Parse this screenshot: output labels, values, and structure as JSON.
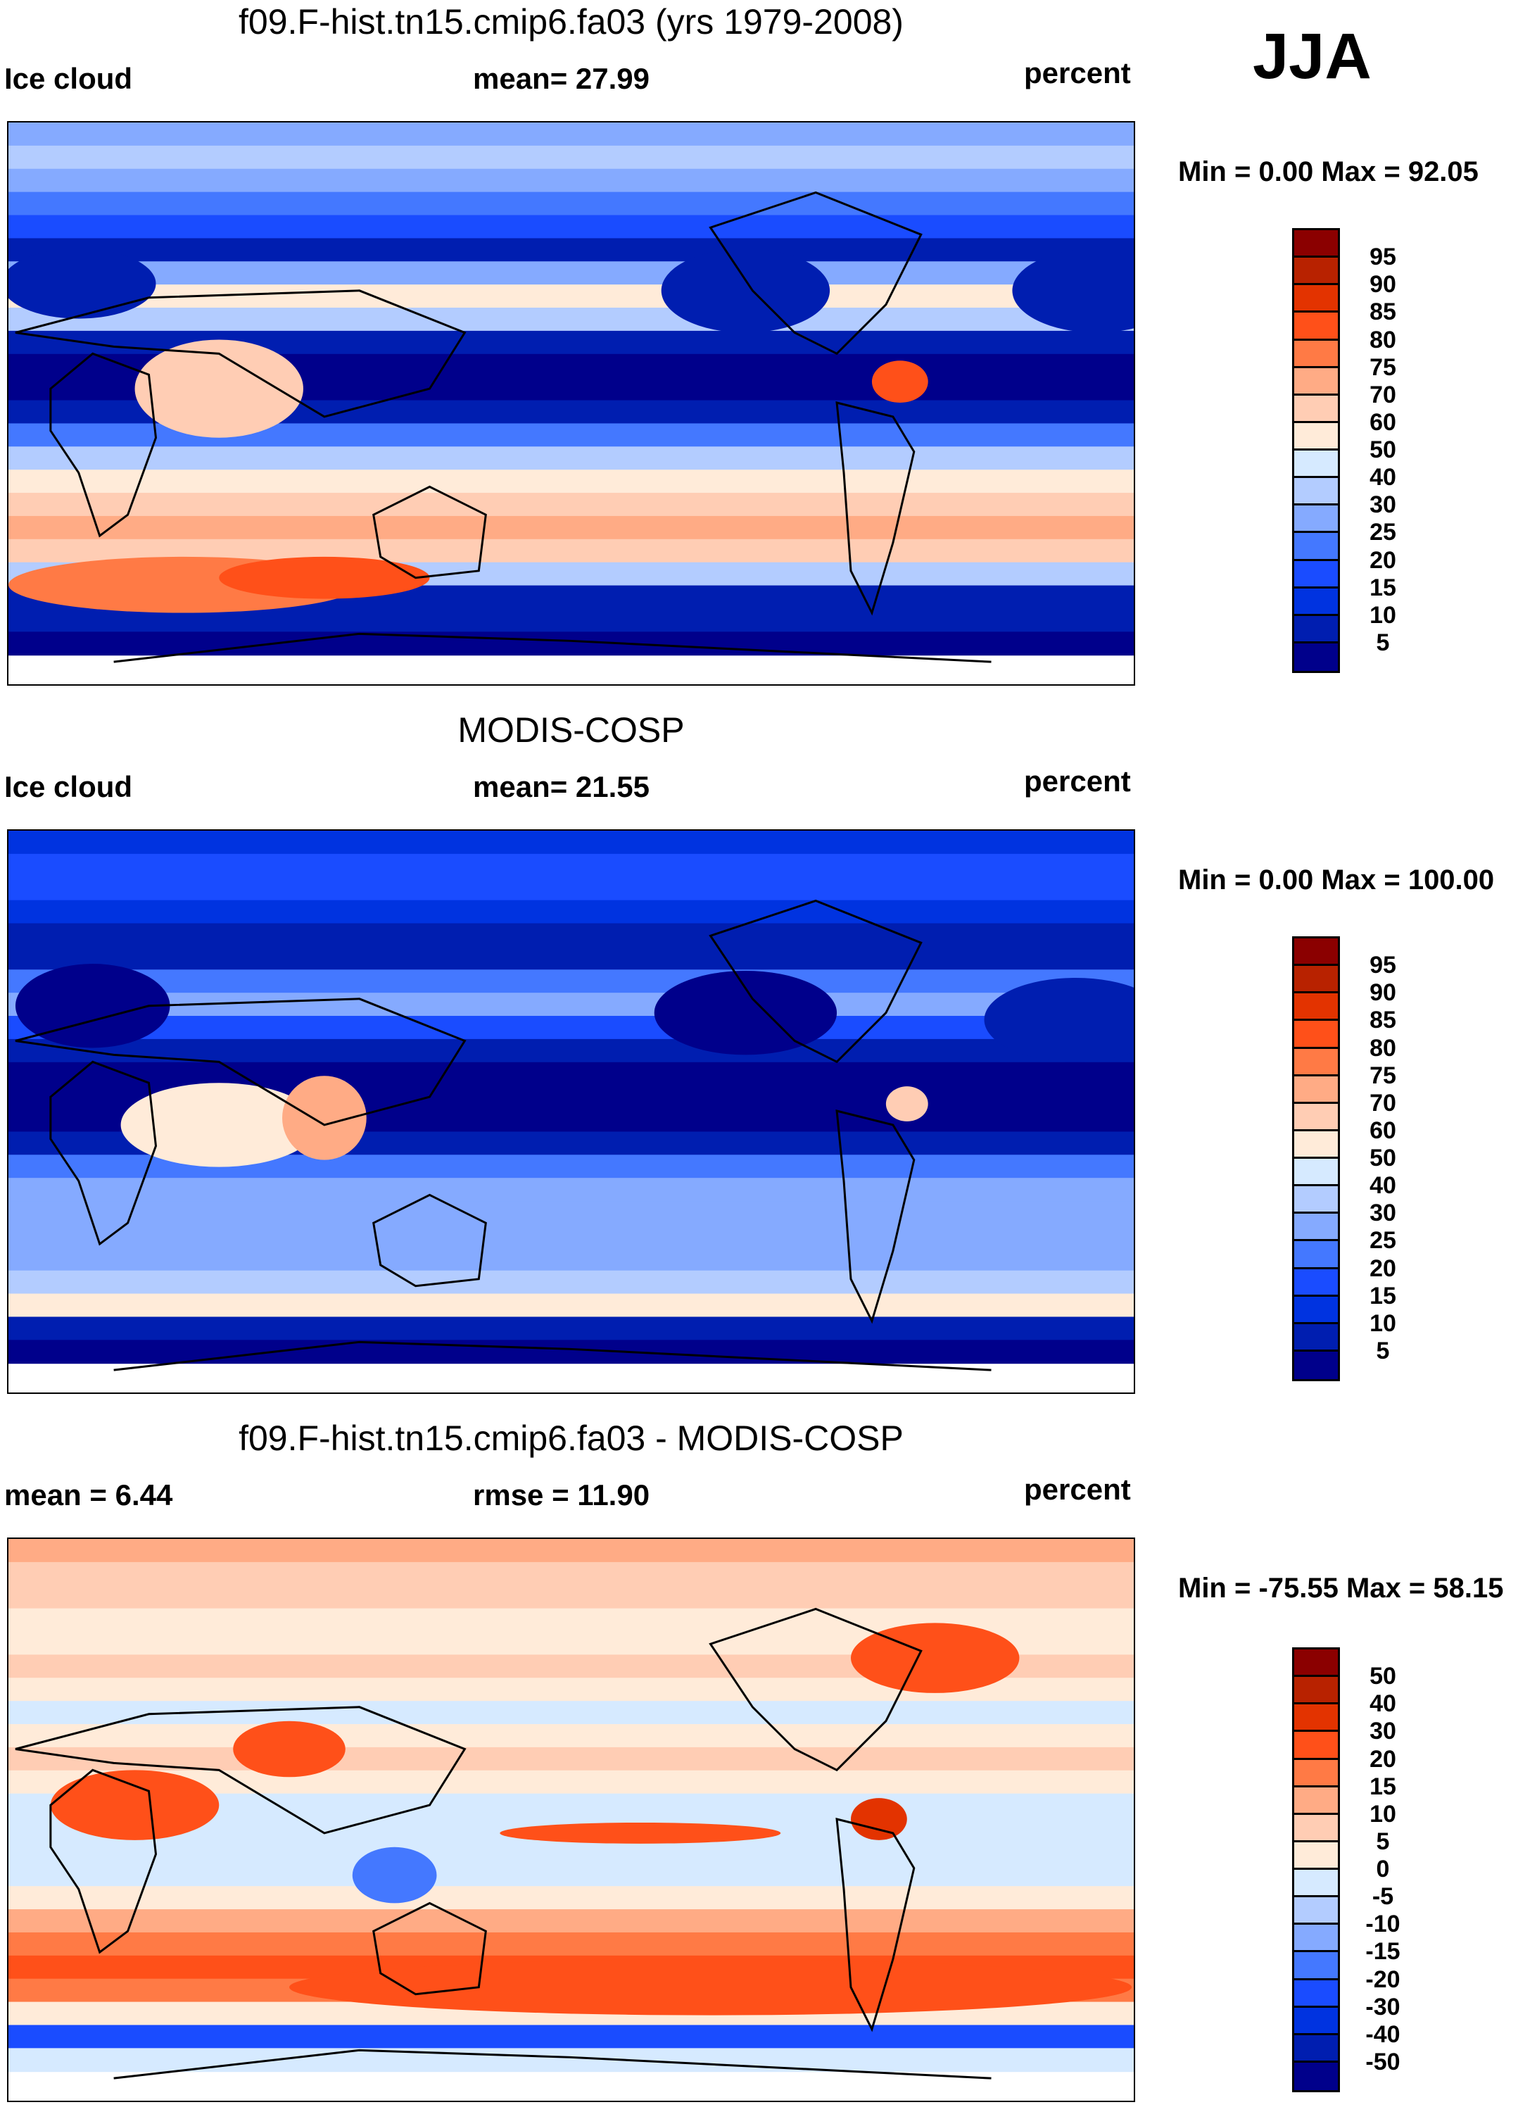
{
  "header": {
    "season": "JJA"
  },
  "colors": [
    "#8b0000",
    "#b82200",
    "#e33300",
    "#ff5019",
    "#ff7a45",
    "#ffab85",
    "#ffcdb4",
    "#ffebd9",
    "#d6eaff",
    "#b3ccff",
    "#85aaff",
    "#4478ff",
    "#1a4cff",
    "#0033e0",
    "#001eb0",
    "#00008b"
  ],
  "chart_data": [
    {
      "type": "heatmap",
      "title": "f09.F-hist.tn15.cmip6.fa03 (yrs 1979-2008)",
      "left_label": "Ice cloud",
      "center_label": "mean=  27.99",
      "right_label": "percent",
      "minmax": "Min =   0.00 Max =  92.05",
      "levels": [
        "95",
        "90",
        "85",
        "80",
        "75",
        "70",
        "60",
        "50",
        "40",
        "30",
        "25",
        "20",
        "15",
        "10",
        "5"
      ],
      "mean": 27.99,
      "min": 0.0,
      "max": 92.05
    },
    {
      "type": "heatmap",
      "title": "MODIS-COSP",
      "left_label": "Ice cloud",
      "center_label": "mean=  21.55",
      "right_label": "percent",
      "minmax": "Min =   0.00 Max = 100.00",
      "levels": [
        "95",
        "90",
        "85",
        "80",
        "75",
        "70",
        "60",
        "50",
        "40",
        "30",
        "25",
        "20",
        "15",
        "10",
        "5"
      ],
      "mean": 21.55,
      "min": 0.0,
      "max": 100.0
    },
    {
      "type": "heatmap",
      "title": "f09.F-hist.tn15.cmip6.fa03 - MODIS-COSP",
      "left_label": "mean =   6.44",
      "center_label": "rmse =  11.90",
      "right_label": "percent",
      "minmax": "Min = -75.55 Max =  58.15",
      "levels": [
        "50",
        "40",
        "30",
        "20",
        "15",
        "10",
        "5",
        "0",
        "-5",
        "-10",
        "-15",
        "-20",
        "-30",
        "-40",
        "-50"
      ],
      "mean": 6.44,
      "rmse": 11.9,
      "min": -75.55,
      "max": 58.15
    }
  ]
}
